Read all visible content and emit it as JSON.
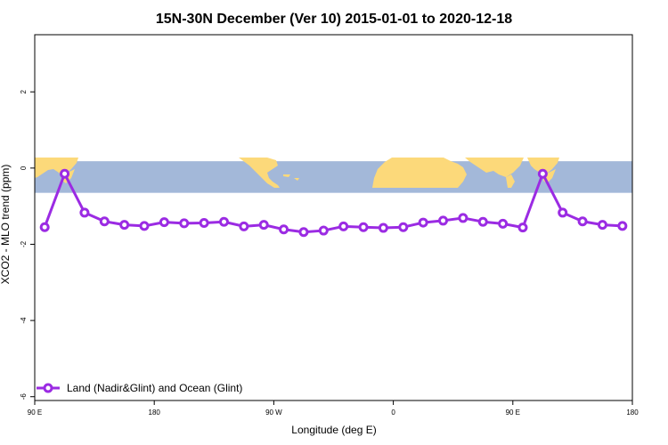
{
  "chart_data": {
    "type": "line",
    "title": "15N-30N December (Ver 10)   2015-01-01 to 2020-12-18",
    "xlabel": "Longitude (deg E)",
    "ylabel": "XCO2 - MLO trend (ppm)",
    "xlim": [
      90,
      540
    ],
    "ylim": [
      -6.1,
      3.5
    ],
    "xticks": [
      {
        "value": 90,
        "label": "90 E"
      },
      {
        "value": 180,
        "label": "180"
      },
      {
        "value": 270,
        "label": "90 W"
      },
      {
        "value": 360,
        "label": "0"
      },
      {
        "value": 450,
        "label": "90 E"
      },
      {
        "value": 540,
        "label": "180"
      }
    ],
    "yticks": [
      {
        "value": 2,
        "label": "2"
      },
      {
        "value": 0,
        "label": "0"
      },
      {
        "value": -2,
        "label": "-2"
      },
      {
        "value": -4,
        "label": "-4"
      },
      {
        "value": -6,
        "label": "-6"
      }
    ],
    "map_band": {
      "ymin": -0.65,
      "ymax": 0.18,
      "ocean_color": "#a3b8d9",
      "land_color": "#fcd97a"
    },
    "series": [
      {
        "name": "Land (Nadir&Glint) and Ocean (Glint)",
        "color": "#9b2be3",
        "x": [
          97.5,
          112.5,
          127.5,
          142.5,
          157.5,
          172.5,
          187.5,
          202.5,
          217.5,
          232.5,
          247.5,
          262.5,
          277.5,
          292.5,
          307.5,
          322.5,
          337.5,
          352.5,
          367.5,
          382.5,
          397.5,
          412.5,
          427.5,
          442.5,
          457.5,
          472.5,
          487.5,
          502.5,
          517.5,
          532.5
        ],
        "y": [
          -1.55,
          -0.15,
          -1.17,
          -1.4,
          -1.49,
          -1.52,
          -1.42,
          -1.45,
          -1.44,
          -1.41,
          -1.53,
          -1.49,
          -1.61,
          -1.68,
          -1.64,
          -1.53,
          -1.55,
          -1.57,
          -1.55,
          -1.43,
          -1.38,
          -1.31,
          -1.41,
          -1.46,
          -1.56,
          -0.15,
          -1.17,
          -1.4,
          -1.49,
          -1.52
        ]
      }
    ],
    "legend": {
      "position": "bottom-left",
      "label": "Land (Nadir&Glint) and Ocean (Glint)"
    }
  }
}
